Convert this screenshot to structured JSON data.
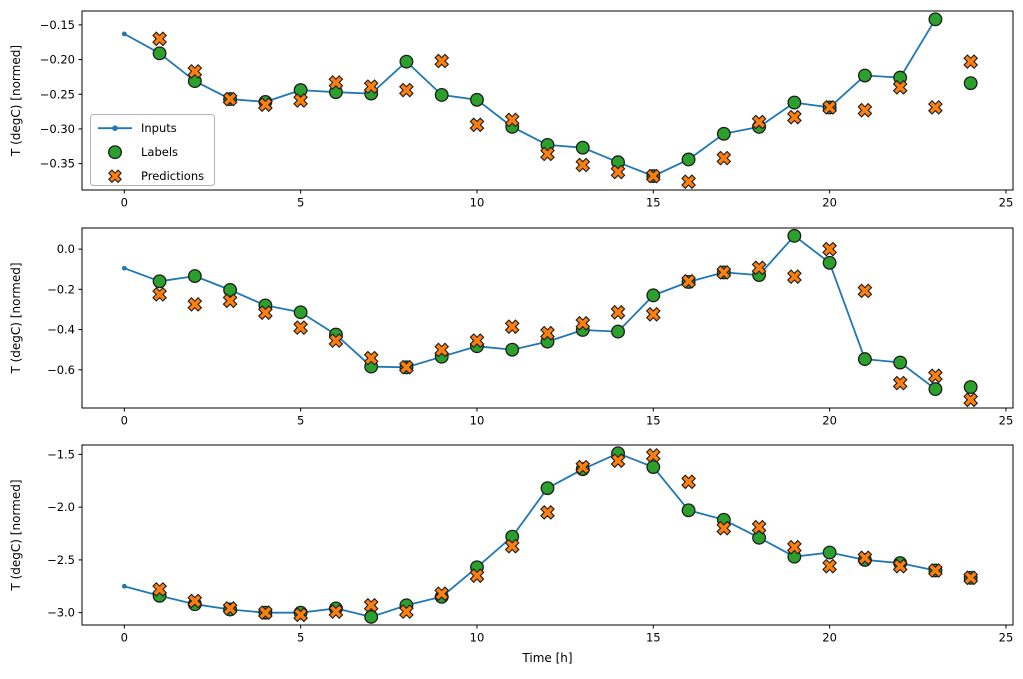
{
  "figure": {
    "xlabel": "Time [h]",
    "ylabel": "T (degC) [normed]",
    "colors": {
      "inputs": "#1f77b4",
      "labels": "#2ca02c",
      "predictions": "#ff7f0e",
      "marker_edge": "#1c1c1c",
      "spine": "#000000",
      "legend_border": "#b3b3b3",
      "legend_bg": "#ffffff"
    },
    "legend": {
      "items": [
        {
          "label": "Inputs",
          "glyph": "line-with-dot"
        },
        {
          "label": "Labels",
          "glyph": "filled-circle"
        },
        {
          "label": "Predictions",
          "glyph": "filled-x"
        }
      ]
    }
  },
  "chart_data": [
    {
      "type": "line",
      "title": "",
      "ylabel": "T (degC) [normed]",
      "xlabel": "",
      "grid": false,
      "legend_position": "center-left",
      "show_legend": true,
      "xlim": [
        -1.2,
        25.2
      ],
      "ylim": [
        -0.388,
        -0.13
      ],
      "xticks": [
        0,
        5,
        10,
        15,
        20,
        25
      ],
      "xtick_labels": [
        "0",
        "5",
        "10",
        "15",
        "20",
        "25"
      ],
      "yticks": [
        -0.15,
        -0.2,
        -0.25,
        -0.3,
        -0.35
      ],
      "ytick_labels": [
        "−0.15",
        "−0.20",
        "−0.25",
        "−0.30",
        "−0.35"
      ],
      "series": [
        {
          "name": "Inputs",
          "style": "line-with-dot",
          "x": [
            0,
            1,
            2,
            3,
            4,
            5,
            6,
            7,
            8,
            9,
            10,
            11,
            12,
            13,
            14,
            15,
            16,
            17,
            18,
            19,
            20,
            21,
            22,
            23
          ],
          "y": [
            -0.163,
            -0.191,
            -0.231,
            -0.257,
            -0.261,
            -0.244,
            -0.247,
            -0.249,
            -0.203,
            -0.251,
            -0.258,
            -0.297,
            -0.323,
            -0.327,
            -0.348,
            -0.368,
            -0.344,
            -0.307,
            -0.297,
            -0.262,
            -0.269,
            -0.223,
            -0.226,
            -0.142
          ]
        },
        {
          "name": "Labels",
          "style": "filled-circle",
          "x": [
            1,
            2,
            3,
            4,
            5,
            6,
            7,
            8,
            9,
            10,
            11,
            12,
            13,
            14,
            15,
            16,
            17,
            18,
            19,
            20,
            21,
            22,
            23,
            24
          ],
          "y": [
            -0.191,
            -0.231,
            -0.257,
            -0.261,
            -0.244,
            -0.247,
            -0.249,
            -0.203,
            -0.251,
            -0.258,
            -0.297,
            -0.323,
            -0.327,
            -0.348,
            -0.368,
            -0.344,
            -0.307,
            -0.297,
            -0.262,
            -0.269,
            -0.223,
            -0.226,
            -0.142,
            -0.234
          ]
        },
        {
          "name": "Predictions",
          "style": "filled-x",
          "x": [
            1,
            2,
            3,
            4,
            5,
            6,
            7,
            8,
            9,
            10,
            11,
            12,
            13,
            14,
            15,
            16,
            17,
            18,
            19,
            20,
            21,
            22,
            23,
            24
          ],
          "y": [
            -0.17,
            -0.217,
            -0.257,
            -0.265,
            -0.259,
            -0.233,
            -0.239,
            -0.244,
            -0.202,
            -0.294,
            -0.287,
            -0.336,
            -0.352,
            -0.362,
            -0.368,
            -0.376,
            -0.342,
            -0.29,
            -0.283,
            -0.269,
            -0.273,
            -0.24,
            -0.269,
            -0.203
          ]
        }
      ]
    },
    {
      "type": "line",
      "title": "",
      "ylabel": "T (degC) [normed]",
      "xlabel": "",
      "grid": false,
      "show_legend": false,
      "xlim": [
        -1.2,
        25.2
      ],
      "ylim": [
        -0.79,
        0.105
      ],
      "xticks": [
        0,
        5,
        10,
        15,
        20,
        25
      ],
      "xtick_labels": [
        "0",
        "5",
        "10",
        "15",
        "20",
        "25"
      ],
      "yticks": [
        0.0,
        -0.2,
        -0.4,
        -0.6
      ],
      "ytick_labels": [
        "0.0",
        "−0.2",
        "−0.4",
        "−0.6"
      ],
      "series": [
        {
          "name": "Inputs",
          "style": "line-with-dot",
          "x": [
            0,
            1,
            2,
            3,
            4,
            5,
            6,
            7,
            8,
            9,
            10,
            11,
            12,
            13,
            14,
            15,
            16,
            17,
            18,
            19,
            20,
            21,
            22,
            23
          ],
          "y": [
            -0.095,
            -0.16,
            -0.134,
            -0.203,
            -0.28,
            -0.314,
            -0.425,
            -0.584,
            -0.588,
            -0.535,
            -0.483,
            -0.5,
            -0.46,
            -0.402,
            -0.41,
            -0.23,
            -0.163,
            -0.116,
            -0.129,
            0.066,
            -0.068,
            -0.547,
            -0.564,
            -0.696
          ]
        },
        {
          "name": "Labels",
          "style": "filled-circle",
          "x": [
            1,
            2,
            3,
            4,
            5,
            6,
            7,
            8,
            9,
            10,
            11,
            12,
            13,
            14,
            15,
            16,
            17,
            18,
            19,
            20,
            21,
            22,
            23,
            24
          ],
          "y": [
            -0.16,
            -0.134,
            -0.203,
            -0.28,
            -0.314,
            -0.425,
            -0.584,
            -0.588,
            -0.535,
            -0.483,
            -0.5,
            -0.46,
            -0.402,
            -0.41,
            -0.23,
            -0.163,
            -0.116,
            -0.129,
            0.066,
            -0.068,
            -0.547,
            -0.564,
            -0.696,
            -0.686
          ]
        },
        {
          "name": "Predictions",
          "style": "filled-x",
          "x": [
            1,
            2,
            3,
            4,
            5,
            6,
            7,
            8,
            9,
            10,
            11,
            12,
            13,
            14,
            15,
            16,
            17,
            18,
            19,
            20,
            21,
            22,
            23,
            24
          ],
          "y": [
            -0.225,
            -0.275,
            -0.257,
            -0.316,
            -0.39,
            -0.455,
            -0.542,
            -0.587,
            -0.501,
            -0.455,
            -0.386,
            -0.418,
            -0.369,
            -0.314,
            -0.324,
            -0.16,
            -0.116,
            -0.093,
            -0.137,
            0.0,
            -0.208,
            -0.666,
            -0.63,
            -0.749
          ]
        }
      ]
    },
    {
      "type": "line",
      "title": "",
      "ylabel": "T (degC) [normed]",
      "xlabel": "Time [h]",
      "grid": false,
      "show_legend": false,
      "xlim": [
        -1.2,
        25.2
      ],
      "ylim": [
        -3.117,
        -1.411
      ],
      "xticks": [
        0,
        5,
        10,
        15,
        20,
        25
      ],
      "xtick_labels": [
        "0",
        "5",
        "10",
        "15",
        "20",
        "25"
      ],
      "yticks": [
        -1.5,
        -2.0,
        -2.5,
        -3.0
      ],
      "ytick_labels": [
        "−1.5",
        "−2.0",
        "−2.5",
        "−3.0"
      ],
      "series": [
        {
          "name": "Inputs",
          "style": "line-with-dot",
          "x": [
            0,
            1,
            2,
            3,
            4,
            5,
            6,
            7,
            8,
            9,
            10,
            11,
            12,
            13,
            14,
            15,
            16,
            17,
            18,
            19,
            20,
            21,
            22,
            23
          ],
          "y": [
            -2.75,
            -2.84,
            -2.92,
            -2.97,
            -3.0,
            -3.0,
            -2.96,
            -3.04,
            -2.93,
            -2.85,
            -2.57,
            -2.28,
            -1.82,
            -1.64,
            -1.49,
            -1.62,
            -2.03,
            -2.12,
            -2.29,
            -2.47,
            -2.43,
            -2.5,
            -2.53,
            -2.6
          ]
        },
        {
          "name": "Labels",
          "style": "filled-circle",
          "x": [
            1,
            2,
            3,
            4,
            5,
            6,
            7,
            8,
            9,
            10,
            11,
            12,
            13,
            14,
            15,
            16,
            17,
            18,
            19,
            20,
            21,
            22,
            23,
            24
          ],
          "y": [
            -2.84,
            -2.92,
            -2.97,
            -3.0,
            -3.0,
            -2.96,
            -3.04,
            -2.93,
            -2.85,
            -2.57,
            -2.28,
            -1.82,
            -1.64,
            -1.49,
            -1.62,
            -2.03,
            -2.12,
            -2.29,
            -2.47,
            -2.43,
            -2.5,
            -2.53,
            -2.6,
            -2.67
          ]
        },
        {
          "name": "Predictions",
          "style": "filled-x",
          "x": [
            1,
            2,
            3,
            4,
            5,
            6,
            7,
            8,
            9,
            10,
            11,
            12,
            13,
            14,
            15,
            16,
            17,
            18,
            19,
            20,
            21,
            22,
            23,
            24
          ],
          "y": [
            -2.78,
            -2.89,
            -2.96,
            -3.0,
            -3.02,
            -2.99,
            -2.93,
            -2.99,
            -2.82,
            -2.65,
            -2.37,
            -2.05,
            -1.62,
            -1.56,
            -1.51,
            -1.76,
            -2.2,
            -2.19,
            -2.38,
            -2.56,
            -2.48,
            -2.56,
            -2.6,
            -2.67
          ]
        }
      ]
    }
  ]
}
